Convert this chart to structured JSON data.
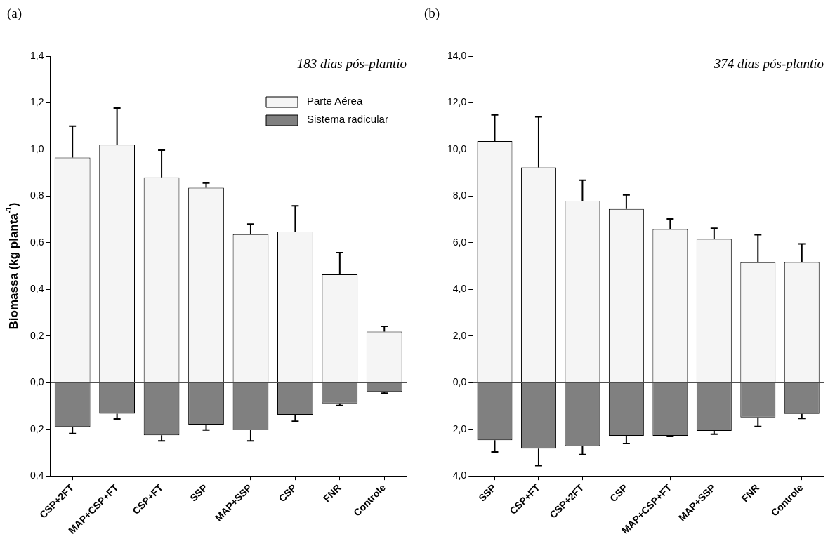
{
  "chart_data": [
    {
      "type": "bar",
      "title": "(a)",
      "ylabel": "Biomassa (kg planta$^{-1}$)",
      "annotations": [
        "183 dias pós-plantio"
      ],
      "categories": [
        "CSP+2FT",
        "MAP+CSP+FT",
        "CSP+FT",
        "SSP",
        "MAP+SSP",
        "CSP",
        "FNR",
        "Controle"
      ],
      "stacked": true,
      "series": [
        {
          "name": "Parte Aérea",
          "color": "#f5f5f5",
          "values": [
            0.965,
            1.02,
            0.88,
            0.836,
            0.636,
            0.648,
            0.464,
            0.219
          ],
          "errors": [
            [
              0.965,
              1.1
            ],
            [
              1.02,
              1.177
            ],
            [
              0.88,
              0.997
            ],
            [
              0.836,
              0.856
            ],
            [
              0.636,
              0.68
            ],
            [
              0.648,
              0.758
            ],
            [
              0.464,
              0.557
            ],
            [
              0.219,
              0.241
            ]
          ]
        },
        {
          "name": "Sistema radicular",
          "color": "#808080",
          "values": [
            -0.19,
            -0.133,
            -0.226,
            -0.18,
            -0.204,
            -0.138,
            -0.089,
            -0.039
          ],
          "errors": [
            [
              -0.218,
              -0.19
            ],
            [
              -0.156,
              -0.133
            ],
            [
              -0.25,
              -0.226
            ],
            [
              -0.203,
              -0.18
            ],
            [
              -0.25,
              -0.204
            ],
            [
              -0.166,
              -0.138
            ],
            [
              -0.098,
              -0.089
            ],
            [
              -0.045,
              -0.039
            ]
          ]
        }
      ],
      "ylim": [
        -0.4,
        1.4
      ],
      "yticks": [
        {
          "value": -0.4,
          "label": "0,4"
        },
        {
          "value": -0.2,
          "label": "0,2"
        },
        {
          "value": 0,
          "label": "0,0"
        },
        {
          "value": 0.2,
          "label": "0,2"
        },
        {
          "value": 0.4,
          "label": "0,4"
        },
        {
          "value": 0.6,
          "label": "0,6"
        },
        {
          "value": 0.8,
          "label": "0,8"
        },
        {
          "value": 1.0,
          "label": "1,0"
        },
        {
          "value": 1.2,
          "label": "1,2"
        },
        {
          "value": 1.4,
          "label": "1,4"
        }
      ],
      "ref_lines": [
        {
          "axis": "y",
          "value": 0,
          "color": "#000000"
        }
      ],
      "legend": "top right",
      "grid": false
    },
    {
      "type": "bar",
      "title": "(b)",
      "annotations": [
        "374 dias pós-plantio"
      ],
      "categories": [
        "SSP",
        "CSP+FT",
        "CSP+2FT",
        "CSP",
        "MAP+CSP+FT",
        "MAP+SSP",
        "FNR",
        "Controle"
      ],
      "stacked": true,
      "series": [
        {
          "color": "#f5f5f5",
          "values": [
            10.36,
            9.23,
            7.8,
            7.45,
            6.58,
            6.16,
            5.16,
            5.17
          ],
          "errors": [
            [
              10.36,
              11.48
            ],
            [
              9.23,
              11.4
            ],
            [
              7.8,
              8.68
            ],
            [
              7.45,
              8.05
            ],
            [
              6.58,
              7.02
            ],
            [
              6.16,
              6.62
            ],
            [
              5.16,
              6.34
            ],
            [
              5.17,
              5.95
            ]
          ]
        },
        {
          "color": "#808080",
          "values": [
            -2.47,
            -2.83,
            -2.72,
            -2.28,
            -2.28,
            -2.07,
            -1.49,
            -1.34
          ],
          "errors": [
            [
              -2.97,
              -2.47
            ],
            [
              -3.56,
              -2.83
            ],
            [
              -3.09,
              -2.72
            ],
            [
              -2.61,
              -2.28
            ],
            [
              -2.31,
              -2.28
            ],
            [
              -2.21,
              -2.07
            ],
            [
              -1.88,
              -1.49
            ],
            [
              -1.54,
              -1.34
            ]
          ]
        }
      ],
      "ylim": [
        -4,
        14
      ],
      "yticks": [
        {
          "value": -4,
          "label": "4,0"
        },
        {
          "value": -2,
          "label": "2,0"
        },
        {
          "value": 0,
          "label": "0,0"
        },
        {
          "value": 2,
          "label": "2,0"
        },
        {
          "value": 4,
          "label": "4,0"
        },
        {
          "value": 6,
          "label": "6,0"
        },
        {
          "value": 8,
          "label": "8,0"
        },
        {
          "value": 10,
          "label": "10,0"
        },
        {
          "value": 12,
          "label": "12,0"
        },
        {
          "value": 14,
          "label": "14,0"
        }
      ],
      "ref_lines": [
        {
          "axis": "y",
          "value": 0,
          "color": "#000000"
        }
      ],
      "legend": false,
      "grid": false
    }
  ]
}
